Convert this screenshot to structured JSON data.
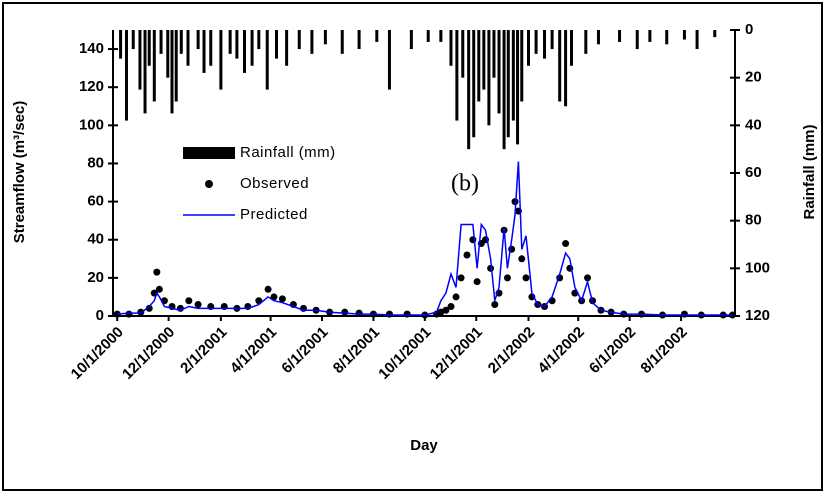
{
  "chart_data": {
    "type": "line",
    "title": null,
    "annotation": "(b)",
    "xlabel": "Day",
    "ylabel": "Streamflow (m³/sec)",
    "y2label": "Rainfall (mm)",
    "xlim": [
      "2000-09-26",
      "2002-10-04"
    ],
    "xticks": [
      {
        "value": "2000-10-01",
        "label": "10/1/2000"
      },
      {
        "value": "2000-12-01",
        "label": "12/1/2000"
      },
      {
        "value": "2001-02-01",
        "label": "2/1/2001"
      },
      {
        "value": "2001-04-01",
        "label": "4/1/2001"
      },
      {
        "value": "2001-06-01",
        "label": "6/1/2001"
      },
      {
        "value": "2001-08-01",
        "label": "8/1/2001"
      },
      {
        "value": "2001-10-01",
        "label": "10/1/2001"
      },
      {
        "value": "2001-12-01",
        "label": "12/1/2001"
      },
      {
        "value": "2002-02-01",
        "label": "2/1/2002"
      },
      {
        "value": "2002-04-01",
        "label": "4/1/2002"
      },
      {
        "value": "2002-06-01",
        "label": "6/1/2002"
      },
      {
        "value": "2002-08-01",
        "label": "8/1/2002"
      }
    ],
    "ylim": [
      0,
      150
    ],
    "yticks": [
      0,
      20,
      40,
      60,
      80,
      100,
      120,
      140
    ],
    "y2lim": [
      120,
      0
    ],
    "y2ticks": [
      0,
      20,
      40,
      60,
      80,
      100,
      120
    ],
    "legend": "middle-left",
    "series": [
      {
        "name": "Rainfall (mm)",
        "kind": "bar",
        "axis": "y2",
        "color": "#000000",
        "x": [
          "2000-10-05",
          "2000-10-12",
          "2000-10-20",
          "2000-10-28",
          "2000-11-03",
          "2000-11-08",
          "2000-11-14",
          "2000-11-22",
          "2000-11-30",
          "2000-12-05",
          "2000-12-10",
          "2000-12-16",
          "2000-12-24",
          "2001-01-05",
          "2001-01-12",
          "2001-01-20",
          "2001-02-01",
          "2001-02-12",
          "2001-02-20",
          "2001-03-01",
          "2001-03-10",
          "2001-03-18",
          "2001-03-28",
          "2001-04-08",
          "2001-04-20",
          "2001-05-05",
          "2001-05-20",
          "2001-06-05",
          "2001-06-25",
          "2001-07-15",
          "2001-08-05",
          "2001-08-20",
          "2001-09-15",
          "2001-10-05",
          "2001-10-20",
          "2001-11-01",
          "2001-11-08",
          "2001-11-15",
          "2001-11-22",
          "2001-11-28",
          "2001-12-04",
          "2001-12-10",
          "2001-12-16",
          "2001-12-22",
          "2001-12-28",
          "2002-01-03",
          "2002-01-08",
          "2002-01-14",
          "2002-01-19",
          "2002-01-24",
          "2002-02-01",
          "2002-02-10",
          "2002-02-20",
          "2002-03-01",
          "2002-03-10",
          "2002-03-17",
          "2002-03-24",
          "2002-04-10",
          "2002-04-25",
          "2002-05-20",
          "2002-06-10",
          "2002-06-25",
          "2002-07-15",
          "2002-08-05",
          "2002-08-20",
          "2002-09-10"
        ],
        "values": [
          12,
          38,
          8,
          25,
          35,
          15,
          30,
          10,
          20,
          35,
          30,
          10,
          15,
          8,
          18,
          15,
          25,
          10,
          12,
          18,
          15,
          8,
          25,
          12,
          15,
          8,
          10,
          6,
          10,
          8,
          5,
          25,
          8,
          5,
          5,
          15,
          38,
          20,
          50,
          45,
          30,
          25,
          40,
          20,
          35,
          50,
          45,
          38,
          48,
          30,
          15,
          10,
          12,
          8,
          30,
          32,
          15,
          10,
          6,
          5,
          8,
          5,
          6,
          4,
          8,
          3
        ]
      },
      {
        "name": "Observed",
        "kind": "dots",
        "color": "#000000",
        "x": [
          "2000-10-01",
          "2000-10-15",
          "2000-10-29",
          "2000-11-08",
          "2000-11-14",
          "2000-11-17",
          "2000-11-20",
          "2000-11-26",
          "2000-12-05",
          "2000-12-15",
          "2000-12-25",
          "2001-01-05",
          "2001-01-20",
          "2001-02-05",
          "2001-02-20",
          "2001-03-05",
          "2001-03-18",
          "2001-03-29",
          "2001-04-05",
          "2001-04-15",
          "2001-04-28",
          "2001-05-10",
          "2001-05-25",
          "2001-06-10",
          "2001-06-28",
          "2001-07-15",
          "2001-08-01",
          "2001-08-20",
          "2001-09-10",
          "2001-10-01",
          "2001-10-15",
          "2001-10-20",
          "2001-10-26",
          "2001-11-01",
          "2001-11-07",
          "2001-11-13",
          "2001-11-20",
          "2001-11-27",
          "2001-12-02",
          "2001-12-07",
          "2001-12-12",
          "2001-12-18",
          "2001-12-23",
          "2001-12-28",
          "2002-01-03",
          "2002-01-07",
          "2002-01-12",
          "2002-01-16",
          "2002-01-20",
          "2002-01-24",
          "2002-01-29",
          "2002-02-05",
          "2002-02-12",
          "2002-02-20",
          "2002-03-01",
          "2002-03-10",
          "2002-03-17",
          "2002-03-22",
          "2002-03-28",
          "2002-04-05",
          "2002-04-12",
          "2002-04-18",
          "2002-04-28",
          "2002-05-10",
          "2002-05-25",
          "2002-06-15",
          "2002-07-10",
          "2002-08-05",
          "2002-08-25",
          "2002-09-20",
          "2002-10-01"
        ],
        "values": [
          1,
          1,
          2,
          4,
          12,
          23,
          14,
          8,
          5,
          4,
          8,
          6,
          5,
          5,
          4,
          5,
          8,
          14,
          10,
          9,
          6,
          4,
          3,
          2,
          2,
          1.5,
          1,
          1,
          1,
          0.5,
          1,
          2,
          3,
          5,
          10,
          20,
          32,
          40,
          18,
          38,
          40,
          25,
          6,
          12,
          45,
          20,
          35,
          60,
          55,
          30,
          20,
          10,
          6,
          5,
          8,
          20,
          38,
          25,
          12,
          8,
          20,
          8,
          3,
          2,
          1,
          1,
          0.5,
          1,
          0.5,
          0.5,
          0.5
        ]
      },
      {
        "name": "Predicted",
        "kind": "line",
        "color": "#0000ff",
        "x": [
          "2000-10-01",
          "2000-10-15",
          "2000-10-29",
          "2000-11-08",
          "2000-11-14",
          "2000-11-17",
          "2000-11-20",
          "2000-11-26",
          "2000-12-05",
          "2000-12-15",
          "2000-12-25",
          "2001-01-05",
          "2001-01-20",
          "2001-02-05",
          "2001-02-20",
          "2001-03-05",
          "2001-03-18",
          "2001-03-29",
          "2001-04-05",
          "2001-04-15",
          "2001-04-28",
          "2001-05-10",
          "2001-05-25",
          "2001-06-10",
          "2001-06-28",
          "2001-07-15",
          "2001-08-01",
          "2001-08-20",
          "2001-09-10",
          "2001-10-01",
          "2001-10-15",
          "2001-10-20",
          "2001-10-26",
          "2001-11-01",
          "2001-11-07",
          "2001-11-13",
          "2001-11-20",
          "2001-11-27",
          "2001-12-02",
          "2001-12-07",
          "2001-12-12",
          "2001-12-18",
          "2001-12-23",
          "2001-12-28",
          "2002-01-03",
          "2002-01-07",
          "2002-01-12",
          "2002-01-16",
          "2002-01-20",
          "2002-01-24",
          "2002-01-29",
          "2002-02-05",
          "2002-02-12",
          "2002-02-20",
          "2002-03-01",
          "2002-03-10",
          "2002-03-17",
          "2002-03-22",
          "2002-03-28",
          "2002-04-05",
          "2002-04-12",
          "2002-04-18",
          "2002-04-28",
          "2002-05-10",
          "2002-05-25",
          "2002-06-15",
          "2002-07-10",
          "2002-08-05",
          "2002-08-25",
          "2002-09-20",
          "2002-10-01"
        ],
        "values": [
          1,
          1.5,
          1.5,
          5,
          8,
          12,
          10,
          5,
          4,
          3,
          5,
          4,
          4,
          4,
          4,
          4,
          6,
          10,
          8,
          7,
          5,
          3,
          3,
          2,
          1.5,
          1,
          1,
          0.5,
          0.5,
          0.5,
          2,
          8,
          12,
          22,
          15,
          48,
          48,
          48,
          25,
          48,
          45,
          30,
          8,
          15,
          46,
          25,
          40,
          53,
          81,
          35,
          42,
          12,
          6,
          5,
          10,
          22,
          33,
          30,
          15,
          8,
          18,
          7,
          3,
          2,
          1,
          1,
          0.5,
          0.5,
          0.5,
          0.5,
          0.5
        ]
      }
    ]
  }
}
